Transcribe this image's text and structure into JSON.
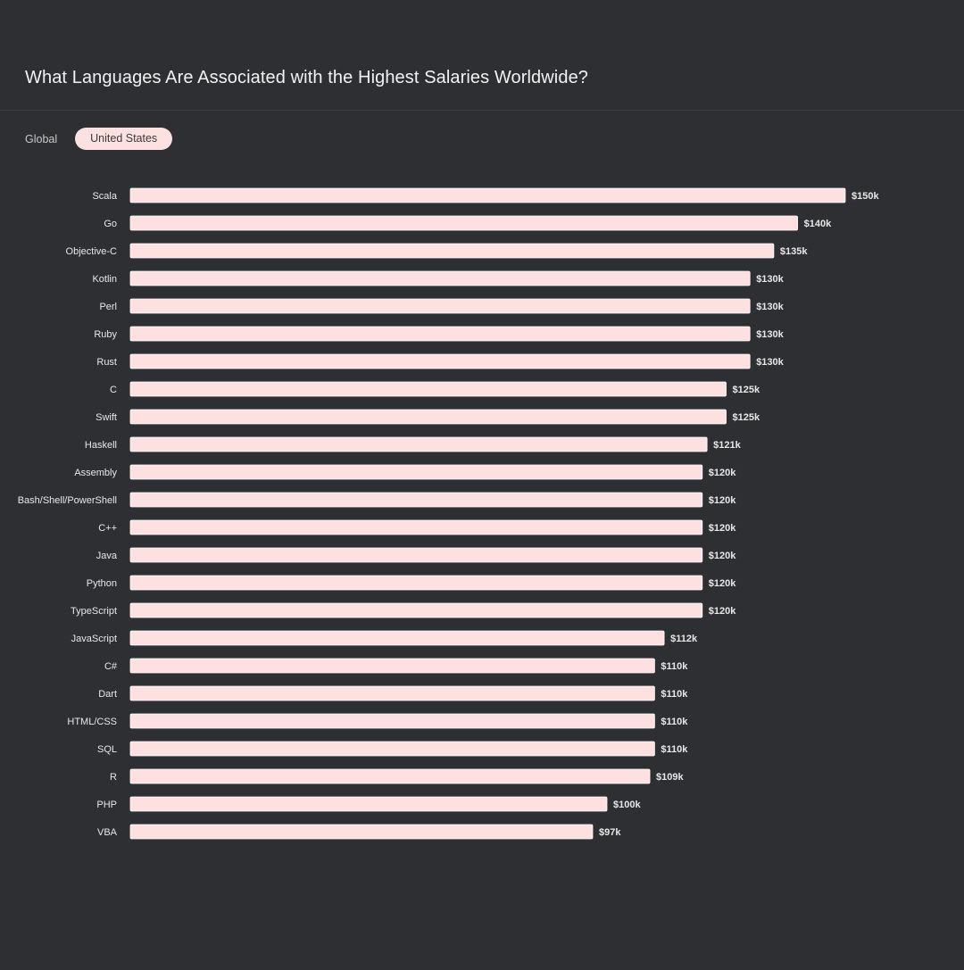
{
  "title": "What Languages Are Associated with the Highest Salaries Worldwide?",
  "tabs": [
    {
      "label": "Global",
      "selected": false
    },
    {
      "label": "United States",
      "selected": true
    }
  ],
  "colors": {
    "background": "#2d2f33",
    "bar": "#fde0e0",
    "bar_edge": "#ffffff",
    "label_text": "#e8e8e8",
    "tab_selected_bg": "#fde0e0"
  },
  "chart_data": {
    "type": "bar",
    "orientation": "horizontal",
    "categories": [
      "Scala",
      "Go",
      "Objective-C",
      "Kotlin",
      "Perl",
      "Ruby",
      "Rust",
      "C",
      "Swift",
      "Haskell",
      "Assembly",
      "Bash/Shell/PowerShell",
      "C++",
      "Java",
      "Python",
      "TypeScript",
      "JavaScript",
      "C#",
      "Dart",
      "HTML/CSS",
      "SQL",
      "R",
      "PHP",
      "VBA"
    ],
    "values": [
      150,
      140,
      135,
      130,
      130,
      130,
      130,
      125,
      125,
      121,
      120,
      120,
      120,
      120,
      120,
      120,
      112,
      110,
      110,
      110,
      110,
      109,
      100,
      97
    ],
    "value_labels": [
      "$150k",
      "$140k",
      "$135k",
      "$130k",
      "$130k",
      "$130k",
      "$130k",
      "$125k",
      "$125k",
      "$121k",
      "$120k",
      "$120k",
      "$120k",
      "$120k",
      "$120k",
      "$120k",
      "$112k",
      "$110k",
      "$110k",
      "$110k",
      "$110k",
      "$109k",
      "$100k",
      "$97k"
    ],
    "unit": "thousand USD",
    "xlim": [
      0,
      150
    ],
    "grid": false,
    "legend": "none"
  }
}
